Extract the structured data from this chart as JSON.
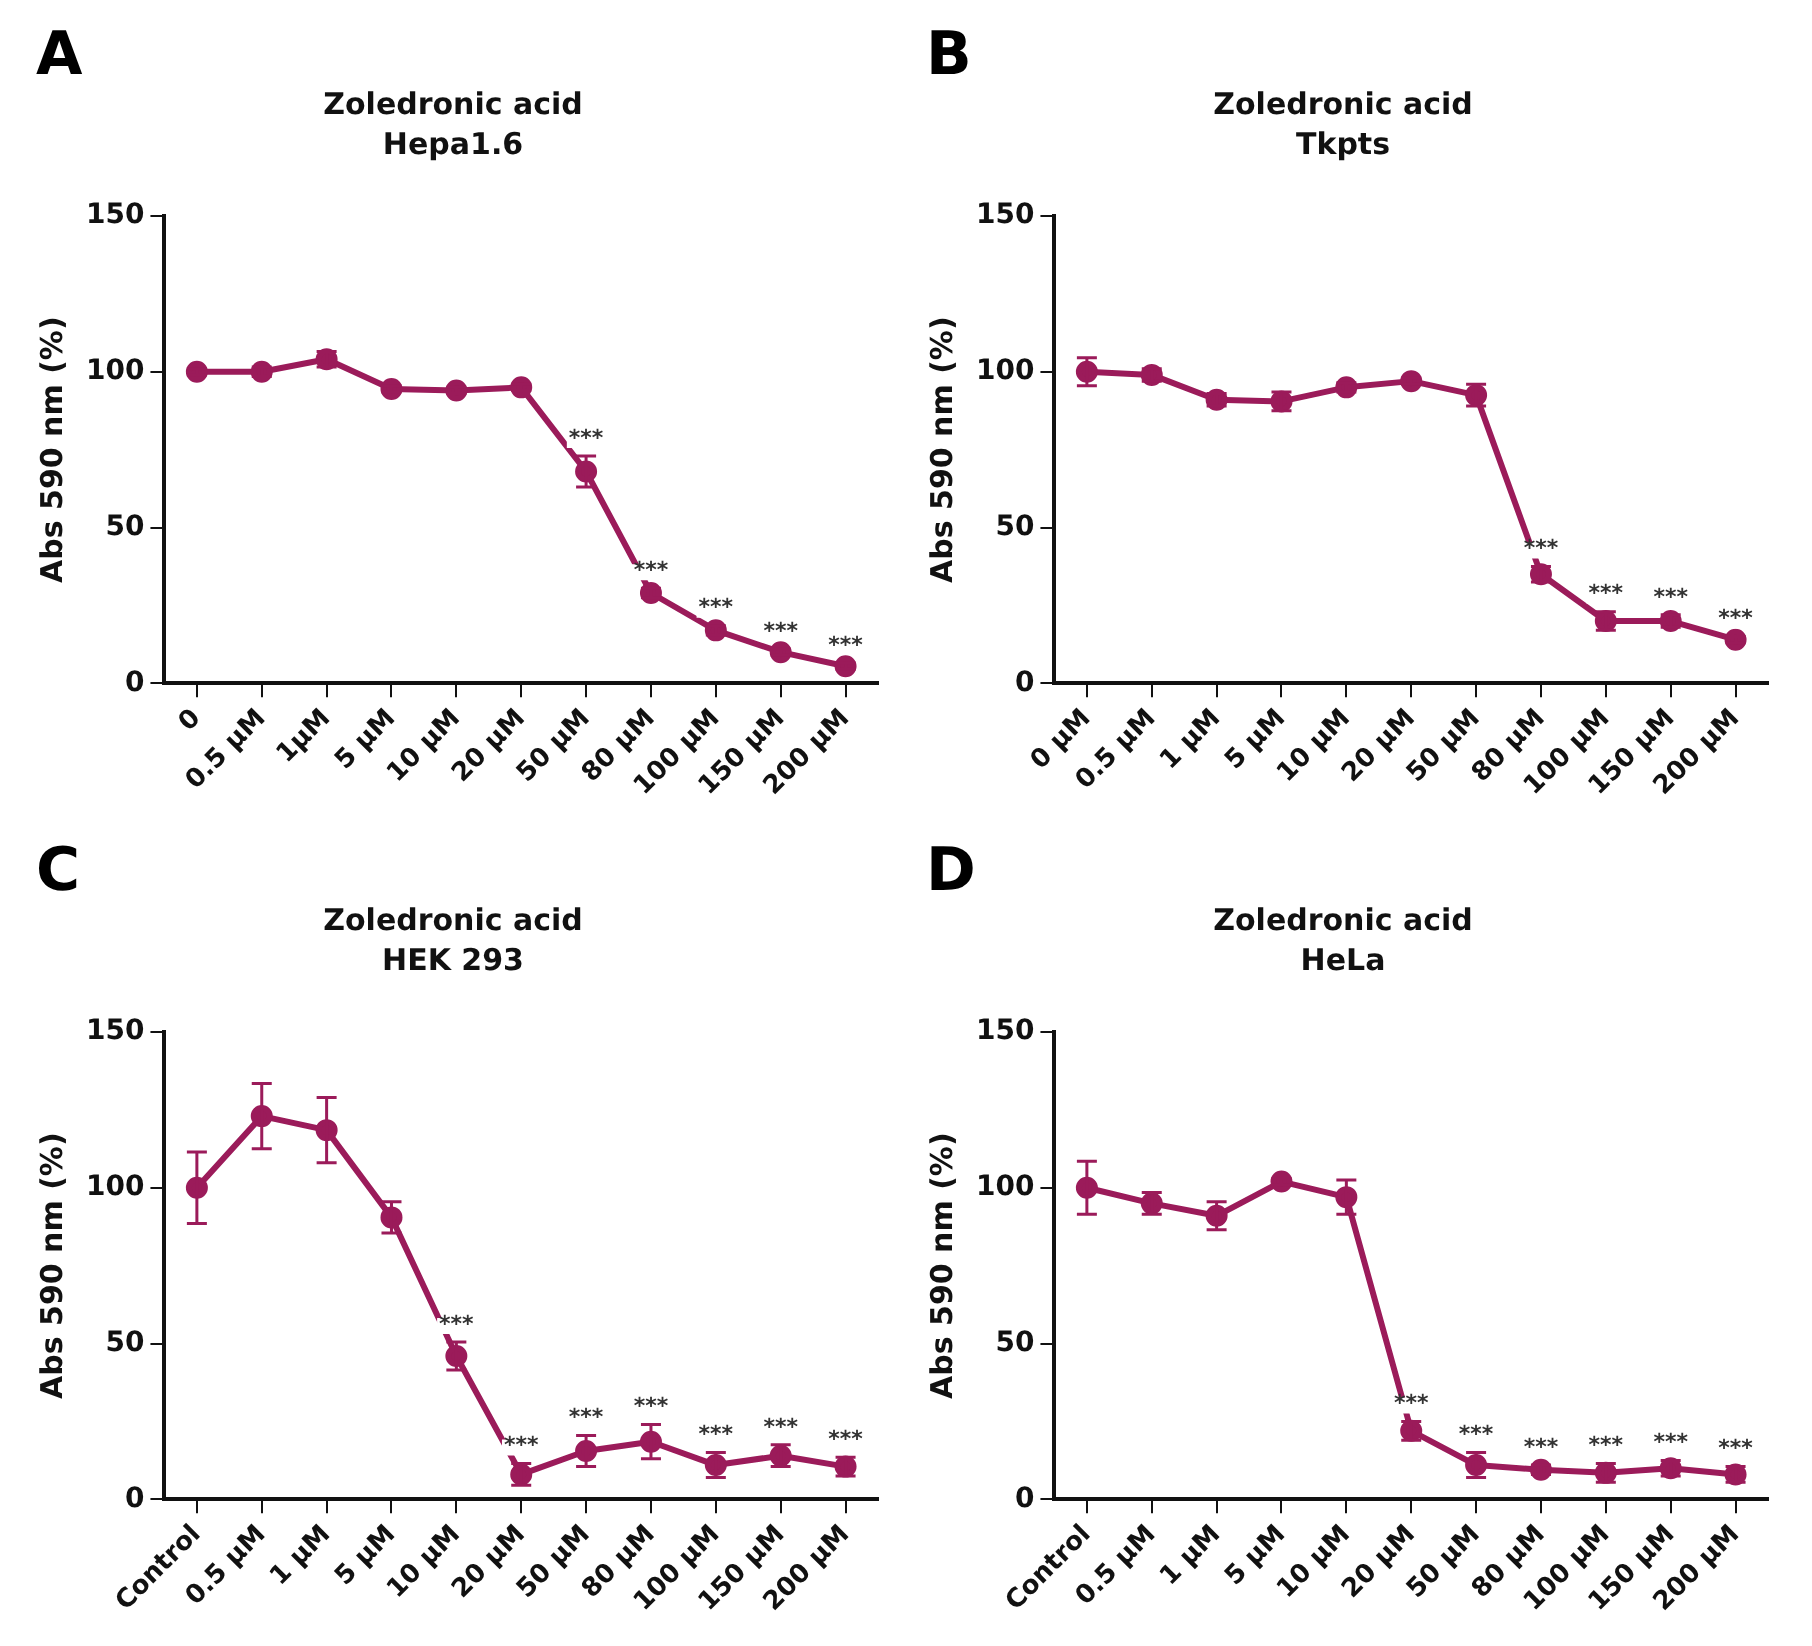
{
  "chart_data": [
    {
      "type": "line",
      "title": "Zoledronic acid",
      "subtitle": "Hepa1.6",
      "ylabel": "Abs 590 nm (%)",
      "categories": [
        "0",
        "0.5 µM",
        "1µM",
        "5 µM",
        "10 µM",
        "20 µM",
        "50 µM",
        "80 µM",
        "100 µM",
        "150 µM",
        "200 µM"
      ],
      "series": [
        {
          "color": "#9b1b5a",
          "values": [
            100,
            100,
            104,
            94.5,
            94,
            95,
            68,
            29,
            17,
            10,
            5.5
          ],
          "errors": [
            1,
            1.5,
            2.5,
            1,
            1,
            1,
            5,
            1.5,
            1.5,
            1,
            1
          ]
        }
      ],
      "ylim": [
        0,
        150
      ],
      "yticks": [
        0,
        50,
        100,
        150
      ],
      "grid": false,
      "legend": false,
      "marker": "circle",
      "line_style": "solid",
      "annotations": [
        "A",
        {
          "text": "***",
          "x": "50 µM",
          "y": 68
        },
        {
          "text": "***",
          "x": "80 µM",
          "y": 29
        },
        {
          "text": "***",
          "x": "100 µM",
          "y": 17
        },
        {
          "text": "***",
          "x": "150 µM",
          "y": 10
        },
        {
          "text": "***",
          "x": "200 µM",
          "y": 5.5
        }
      ]
    },
    {
      "type": "line",
      "title": "Zoledronic acid",
      "subtitle": "Tkpts",
      "ylabel": "Abs 590 nm (%)",
      "categories": [
        "0 µM",
        "0.5 µM",
        "1 µM",
        "5 µM",
        "10 µM",
        "20 µM",
        "50 µM",
        "80 µM",
        "100 µM",
        "150 µM",
        "200 µM"
      ],
      "series": [
        {
          "color": "#9b1b5a",
          "values": [
            100,
            99,
            91,
            90.5,
            95,
            97,
            92.5,
            35,
            20,
            20,
            14
          ],
          "errors": [
            4.5,
            2,
            2,
            3,
            1.5,
            1,
            3.5,
            2.5,
            3,
            2,
            1
          ]
        }
      ],
      "ylim": [
        0,
        150
      ],
      "yticks": [
        0,
        50,
        100,
        150
      ],
      "grid": false,
      "legend": false,
      "marker": "circle",
      "line_style": "solid",
      "annotations": [
        "B",
        {
          "text": "***",
          "x": "80 µM",
          "y": 35
        },
        {
          "text": "***",
          "x": "100 µM",
          "y": 20
        },
        {
          "text": "***",
          "x": "150 µM",
          "y": 20
        },
        {
          "text": "***",
          "x": "200 µM",
          "y": 14
        }
      ]
    },
    {
      "type": "line",
      "title": "Zoledronic acid",
      "subtitle": "HEK 293",
      "ylabel": "Abs 590 nm (%)",
      "categories": [
        "Control",
        "0.5 µM",
        "1 µM",
        "5 µM",
        "10 µM",
        "20 µM",
        "50 µM",
        "80 µM",
        "100 µM",
        "150 µM",
        "200 µM"
      ],
      "series": [
        {
          "color": "#9b1b5a",
          "values": [
            100,
            123,
            118.5,
            90.5,
            46,
            8,
            15.5,
            18.5,
            11,
            14,
            10.5
          ],
          "errors": [
            11.5,
            10.5,
            10.5,
            5,
            4.5,
            3.5,
            5,
            5.5,
            4,
            3.5,
            3
          ]
        }
      ],
      "ylim": [
        0,
        150
      ],
      "yticks": [
        0,
        50,
        100,
        150
      ],
      "grid": false,
      "legend": false,
      "marker": "circle",
      "line_style": "solid",
      "annotations": [
        "C",
        {
          "text": "***",
          "x": "10 µM",
          "y": 46
        },
        {
          "text": "***",
          "x": "20 µM",
          "y": 8
        },
        {
          "text": "***",
          "x": "50 µM",
          "y": 15.5
        },
        {
          "text": "***",
          "x": "80 µM",
          "y": 18.5
        },
        {
          "text": "***",
          "x": "100 µM",
          "y": 11
        },
        {
          "text": "***",
          "x": "150 µM",
          "y": 14
        },
        {
          "text": "***",
          "x": "200 µM",
          "y": 10.5
        }
      ]
    },
    {
      "type": "line",
      "title": "Zoledronic acid",
      "subtitle": "HeLa",
      "ylabel": "Abs 590 nm (%)",
      "categories": [
        "Control",
        "0.5 µM",
        "1 µM",
        "5 µM",
        "10 µM",
        "20 µM",
        "50 µM",
        "80 µM",
        "100 µM",
        "150 µM",
        "200 µM"
      ],
      "series": [
        {
          "color": "#9b1b5a",
          "values": [
            100,
            95,
            91,
            102,
            97,
            22,
            11,
            9.5,
            8.5,
            10,
            8
          ],
          "errors": [
            8.5,
            3.5,
            4.5,
            1,
            5.5,
            3,
            4,
            1.5,
            3,
            2.5,
            2.5
          ]
        }
      ],
      "ylim": [
        0,
        150
      ],
      "yticks": [
        0,
        50,
        100,
        150
      ],
      "grid": false,
      "legend": false,
      "marker": "circle",
      "line_style": "solid",
      "annotations": [
        "D",
        {
          "text": "***",
          "x": "20 µM",
          "y": 22
        },
        {
          "text": "***",
          "x": "50 µM",
          "y": 11
        },
        {
          "text": "***",
          "x": "80 µM",
          "y": 9.5
        },
        {
          "text": "***",
          "x": "100 µM",
          "y": 8.5
        },
        {
          "text": "***",
          "x": "150 µM",
          "y": 10
        },
        {
          "text": "***",
          "x": "200 µM",
          "y": 8
        }
      ]
    }
  ]
}
